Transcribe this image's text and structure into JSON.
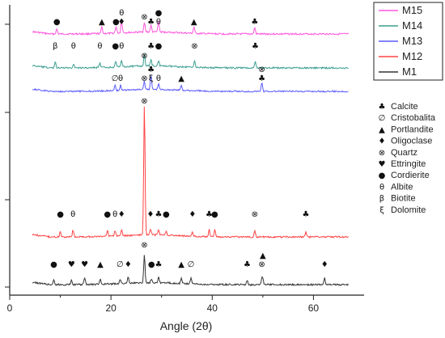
{
  "chart_data": {
    "type": "line",
    "title": "",
    "xlabel": "Angle (2θ)",
    "ylabel": "",
    "xlim": [
      0,
      70
    ],
    "xticks": [
      0,
      20,
      40,
      60
    ],
    "grid": false,
    "colors": {
      "M15": "#ff55dd",
      "M14": "#3a9e90",
      "M13": "#5a5aff",
      "M12": "#ff4444",
      "M1": "#333333"
    },
    "series_legend": [
      {
        "name": "M15",
        "color": "#ff55dd"
      },
      {
        "name": "M14",
        "color": "#3a9e90"
      },
      {
        "name": "M13",
        "color": "#5a5aff"
      },
      {
        "name": "M12",
        "color": "#ff4444"
      },
      {
        "name": "M1",
        "color": "#333333"
      }
    ],
    "phases": [
      {
        "symbol": "♣",
        "name": "Calcite"
      },
      {
        "symbol": "∅",
        "name": "Cristobalita"
      },
      {
        "symbol": "▲",
        "name": "Portlandite"
      },
      {
        "symbol": "♦",
        "name": "Oligoclase"
      },
      {
        "symbol": "⊗",
        "name": "Quartz"
      },
      {
        "symbol": "♥",
        "name": "Ettringite"
      },
      {
        "symbol": "●",
        "name": "Cordierite"
      },
      {
        "symbol": "θ",
        "name": "Albite"
      },
      {
        "symbol": "β",
        "name": "Biotite"
      },
      {
        "symbol": "ξ",
        "name": "Dolomite"
      }
    ],
    "peak_labels": {
      "M15": [
        {
          "x": 9.3,
          "symbol": "●"
        },
        {
          "x": 18.2,
          "symbol": "▲"
        },
        {
          "x": 21.0,
          "symbol": "●"
        },
        {
          "x": 22.1,
          "symbol": "♦"
        },
        {
          "x": 22.1,
          "symbol": "θ"
        },
        {
          "x": 26.6,
          "symbol": "⊗"
        },
        {
          "x": 27.9,
          "symbol": "♣"
        },
        {
          "x": 29.4,
          "symbol": "θ"
        },
        {
          "x": 29.4,
          "symbol": "●"
        },
        {
          "x": 36.4,
          "symbol": "▲"
        },
        {
          "x": 48.4,
          "symbol": "♣"
        }
      ],
      "M14": [
        {
          "x": 9.0,
          "symbol": "β"
        },
        {
          "x": 12.6,
          "symbol": "θ"
        },
        {
          "x": 17.8,
          "symbol": "θ"
        },
        {
          "x": 20.9,
          "symbol": "●"
        },
        {
          "x": 22.1,
          "symbol": "θ"
        },
        {
          "x": 26.6,
          "symbol": "⊗"
        },
        {
          "x": 27.9,
          "symbol": "♣"
        },
        {
          "x": 29.4,
          "symbol": "●"
        },
        {
          "x": 36.5,
          "symbol": "⊗"
        },
        {
          "x": 48.5,
          "symbol": "♣"
        }
      ],
      "M13": [
        {
          "x": 20.8,
          "symbol": "∅"
        },
        {
          "x": 21.9,
          "symbol": "θ"
        },
        {
          "x": 26.6,
          "symbol": "⊗"
        },
        {
          "x": 27.9,
          "symbol": "ξ"
        },
        {
          "x": 27.9,
          "symbol": "♣"
        },
        {
          "x": 29.4,
          "symbol": "θ"
        },
        {
          "x": 33.9,
          "symbol": "▲"
        },
        {
          "x": 49.8,
          "symbol": "♣"
        },
        {
          "x": 49.8,
          "symbol": "⊗"
        }
      ],
      "M12": [
        {
          "x": 10.0,
          "symbol": "●"
        },
        {
          "x": 12.5,
          "symbol": "θ"
        },
        {
          "x": 19.3,
          "symbol": "●"
        },
        {
          "x": 20.8,
          "symbol": "θ"
        },
        {
          "x": 22.1,
          "symbol": "♦"
        },
        {
          "x": 26.6,
          "symbol": "⊗"
        },
        {
          "x": 27.8,
          "symbol": "♦"
        },
        {
          "x": 29.4,
          "symbol": "♣"
        },
        {
          "x": 30.9,
          "symbol": "●"
        },
        {
          "x": 36.1,
          "symbol": "♦"
        },
        {
          "x": 39.4,
          "symbol": "♣"
        },
        {
          "x": 40.5,
          "symbol": "●"
        },
        {
          "x": 48.4,
          "symbol": "⊗"
        },
        {
          "x": 58.5,
          "symbol": "♣"
        }
      ],
      "M1": [
        {
          "x": 8.7,
          "symbol": "●"
        },
        {
          "x": 12.2,
          "symbol": "♥"
        },
        {
          "x": 14.8,
          "symbol": "♥"
        },
        {
          "x": 17.9,
          "symbol": "▲"
        },
        {
          "x": 21.8,
          "symbol": "∅"
        },
        {
          "x": 23.4,
          "symbol": "♦"
        },
        {
          "x": 26.6,
          "symbol": "⊗"
        },
        {
          "x": 28.0,
          "symbol": "●"
        },
        {
          "x": 29.4,
          "symbol": "♣"
        },
        {
          "x": 33.9,
          "symbol": "▲"
        },
        {
          "x": 35.8,
          "symbol": "∅"
        },
        {
          "x": 46.9,
          "symbol": "♣"
        },
        {
          "x": 49.8,
          "symbol": "⊗"
        },
        {
          "x": 50.0,
          "symbol": "▲"
        },
        {
          "x": 62.2,
          "symbol": "♦"
        }
      ]
    }
  }
}
